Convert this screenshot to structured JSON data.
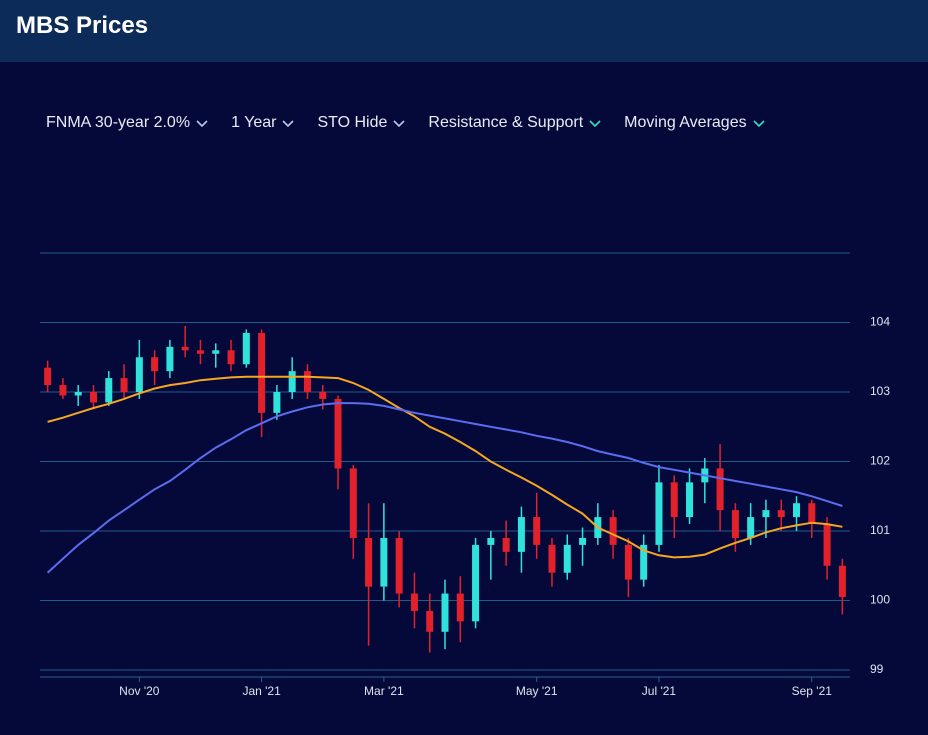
{
  "header": {
    "title": "MBS Prices"
  },
  "controls": [
    "FNMA 30-year 2.0%",
    "1 Year",
    "STO Hide",
    "Resistance & Support",
    "Moving Averages"
  ],
  "chart_data": {
    "type": "candlestick",
    "categories": [
      null,
      null,
      null,
      null,
      null,
      null,
      "Nov '20",
      null,
      null,
      null,
      null,
      null,
      null,
      null,
      "Jan '21",
      null,
      null,
      null,
      null,
      null,
      null,
      null,
      "Mar '21",
      null,
      null,
      null,
      null,
      null,
      null,
      null,
      null,
      null,
      "May '21",
      null,
      null,
      null,
      null,
      null,
      null,
      null,
      "Jul '21",
      null,
      null,
      null,
      null,
      null,
      null,
      null,
      null,
      null,
      "Sep '21",
      null,
      null
    ],
    "open": [
      103.35,
      103.1,
      102.95,
      103.0,
      102.85,
      103.2,
      103.0,
      103.5,
      103.3,
      103.65,
      103.6,
      103.55,
      103.6,
      103.4,
      103.85,
      102.7,
      103.0,
      103.3,
      103.0,
      102.9,
      101.9,
      100.9,
      100.2,
      100.9,
      100.1,
      99.85,
      99.55,
      100.1,
      99.7,
      100.8,
      100.9,
      100.7,
      101.2,
      100.8,
      100.4,
      100.8,
      100.9,
      101.2,
      100.8,
      100.3,
      100.8,
      101.7,
      101.2,
      101.7,
      101.9,
      101.3,
      100.9,
      101.2,
      101.3,
      101.2,
      101.4,
      101.1,
      100.5
    ],
    "high": [
      103.45,
      103.2,
      103.1,
      103.1,
      103.3,
      103.4,
      103.75,
      103.6,
      103.75,
      103.95,
      103.75,
      103.7,
      103.75,
      103.9,
      103.9,
      103.1,
      103.5,
      103.4,
      103.1,
      102.95,
      101.95,
      101.4,
      101.4,
      101.0,
      100.4,
      100.1,
      100.3,
      100.35,
      100.9,
      101.0,
      101.15,
      101.35,
      101.55,
      100.9,
      100.95,
      101.05,
      101.4,
      101.3,
      100.9,
      100.95,
      101.95,
      101.8,
      101.9,
      102.05,
      102.25,
      101.4,
      101.4,
      101.45,
      101.45,
      101.5,
      101.45,
      101.2,
      100.6
    ],
    "low": [
      103.0,
      102.9,
      102.8,
      102.75,
      102.8,
      102.9,
      102.9,
      103.1,
      103.2,
      103.5,
      103.4,
      103.35,
      103.3,
      103.35,
      102.35,
      102.6,
      102.9,
      102.9,
      102.75,
      101.6,
      100.6,
      99.35,
      100.0,
      99.9,
      99.6,
      99.25,
      99.3,
      99.4,
      99.6,
      100.3,
      100.5,
      100.4,
      100.6,
      100.2,
      100.3,
      100.5,
      100.8,
      100.6,
      100.05,
      100.2,
      100.7,
      100.9,
      101.1,
      101.4,
      101.0,
      100.7,
      100.8,
      100.9,
      101.0,
      101.0,
      100.9,
      100.3,
      99.8
    ],
    "close": [
      103.1,
      102.95,
      103.0,
      102.85,
      103.2,
      103.0,
      103.5,
      103.3,
      103.65,
      103.6,
      103.55,
      103.6,
      103.4,
      103.85,
      102.7,
      103.0,
      103.3,
      103.0,
      102.9,
      101.9,
      100.9,
      100.2,
      100.9,
      100.1,
      99.85,
      99.55,
      100.1,
      99.7,
      100.8,
      100.9,
      100.7,
      101.2,
      100.8,
      100.4,
      100.8,
      100.9,
      101.2,
      100.8,
      100.3,
      100.8,
      101.7,
      101.2,
      101.7,
      101.9,
      101.3,
      100.9,
      101.2,
      101.3,
      101.2,
      101.4,
      101.1,
      100.5,
      100.05
    ],
    "up_color": "#2fe3dc",
    "down_color": "#e3212b",
    "moving_averages": [
      {
        "color": "#f5a623",
        "values": [
          102.57,
          102.63,
          102.7,
          102.77,
          102.83,
          102.9,
          102.98,
          103.05,
          103.1,
          103.13,
          103.17,
          103.19,
          103.21,
          103.22,
          103.22,
          103.22,
          103.22,
          103.22,
          103.21,
          103.2,
          103.13,
          103.03,
          102.9,
          102.77,
          102.65,
          102.5,
          102.4,
          102.28,
          102.15,
          102.0,
          101.88,
          101.77,
          101.65,
          101.52,
          101.38,
          101.25,
          101.05,
          100.95,
          100.85,
          100.72,
          100.65,
          100.62,
          100.63,
          100.66,
          100.75,
          100.83,
          100.9,
          100.98,
          101.04,
          101.08,
          101.12,
          101.1,
          101.06
        ]
      },
      {
        "color": "#5b6cf0",
        "values": [
          100.4,
          100.6,
          100.8,
          100.97,
          101.15,
          101.3,
          101.45,
          101.6,
          101.72,
          101.88,
          102.05,
          102.2,
          102.32,
          102.45,
          102.55,
          102.65,
          102.72,
          102.78,
          102.82,
          102.84,
          102.84,
          102.83,
          102.8,
          102.75,
          102.7,
          102.66,
          102.62,
          102.58,
          102.54,
          102.5,
          102.46,
          102.42,
          102.37,
          102.33,
          102.28,
          102.22,
          102.15,
          102.1,
          102.05,
          101.98,
          101.92,
          101.88,
          101.84,
          101.8,
          101.76,
          101.72,
          101.68,
          101.64,
          101.6,
          101.56,
          101.5,
          101.43,
          101.36
        ]
      }
    ],
    "ylim": [
      99,
      105
    ],
    "yticks": [
      99,
      100,
      101,
      102,
      103,
      104
    ],
    "grid": true
  }
}
